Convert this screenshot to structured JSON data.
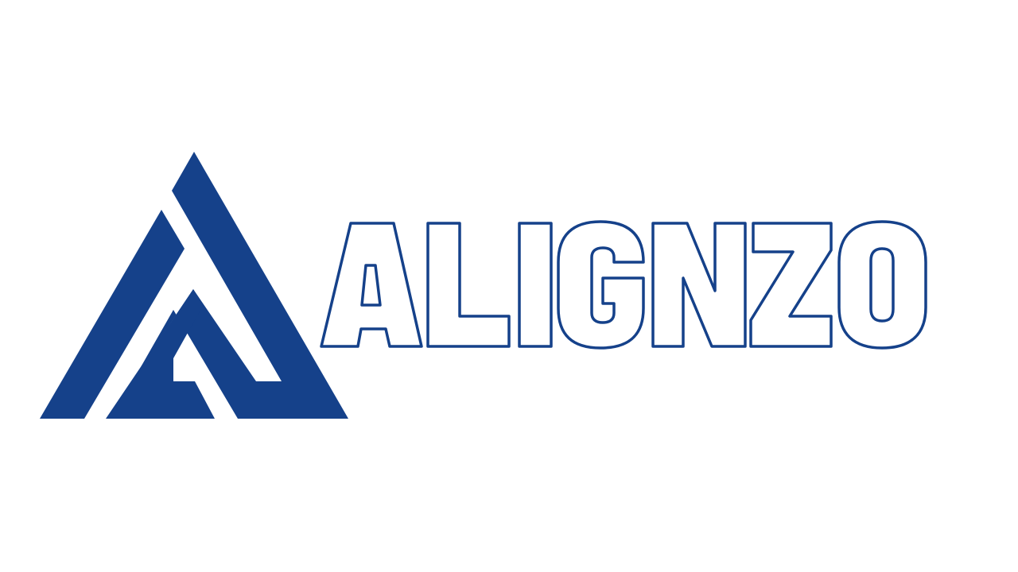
{
  "brand": {
    "name": "ALIGNZO",
    "mark_icon": "stacked-triangle-a-icon",
    "colors": {
      "primary": "#15418A",
      "background": "#FFFFFF"
    }
  }
}
